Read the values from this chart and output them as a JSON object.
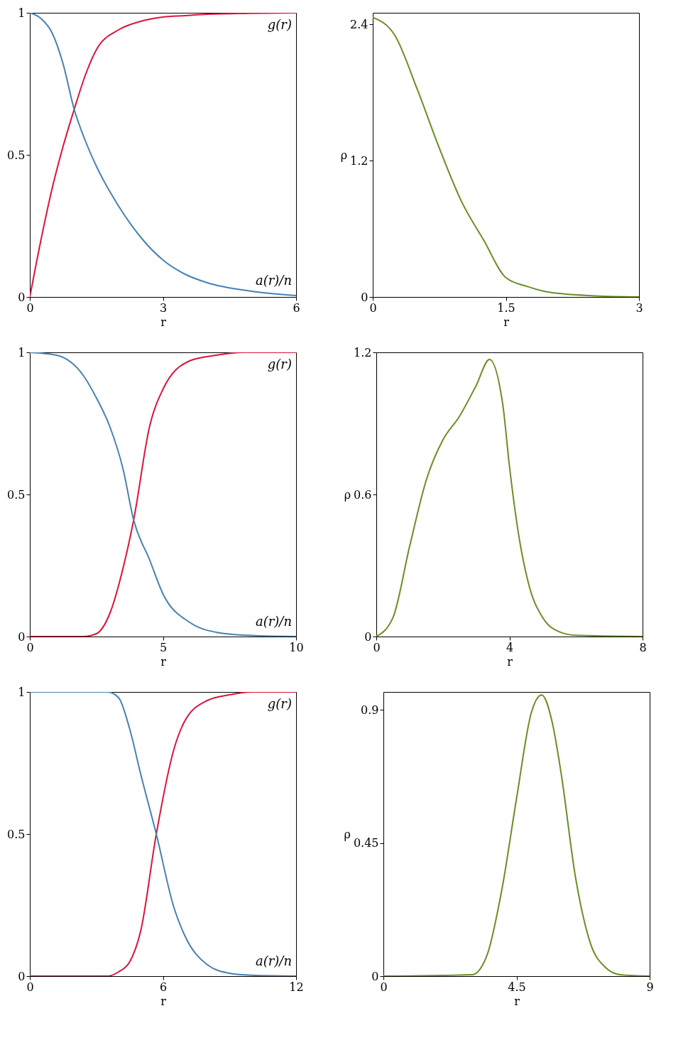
{
  "chart_data": [
    {
      "type": "line",
      "xlabel": "r",
      "x": [
        0,
        0.25,
        0.5,
        0.75,
        1,
        1.25,
        1.5,
        2,
        2.5,
        3,
        3.5,
        4,
        5,
        6
      ],
      "xlim": [
        0,
        6
      ],
      "ylim": [
        0,
        1
      ],
      "xticks": [
        0,
        3,
        6
      ],
      "yticks": [
        0,
        0.5,
        1
      ],
      "grid": false,
      "series": [
        {
          "name": "g(r)",
          "color": "#dc143c",
          "values": [
            0,
            0.2,
            0.38,
            0.53,
            0.66,
            0.78,
            0.87,
            0.94,
            0.97,
            0.985,
            0.99,
            0.995,
            0.998,
            1
          ]
        },
        {
          "name": "a(r)/n",
          "color": "#4682b4",
          "values": [
            1,
            0.98,
            0.93,
            0.82,
            0.66,
            0.55,
            0.46,
            0.32,
            0.21,
            0.13,
            0.08,
            0.05,
            0.02,
            0.005
          ]
        }
      ]
    },
    {
      "type": "line",
      "xlabel": "r",
      "ylabel": "ρ",
      "x": [
        0,
        0.25,
        0.5,
        0.75,
        1,
        1.25,
        1.5,
        1.75,
        2,
        2.5,
        3
      ],
      "xlim": [
        0,
        3
      ],
      "ylim": [
        0,
        2.5
      ],
      "xticks": [
        0,
        1.5,
        3
      ],
      "yticks": [
        0,
        1.2,
        2.4
      ],
      "grid": false,
      "series": [
        {
          "color": "#6b8e23",
          "values": [
            2.46,
            2.3,
            1.83,
            1.31,
            0.84,
            0.5,
            0.17,
            0.09,
            0.04,
            0.01,
            0
          ]
        }
      ]
    },
    {
      "type": "line",
      "xlabel": "r",
      "x": [
        0,
        1,
        2,
        2.5,
        3,
        3.5,
        3.9,
        4.5,
        5,
        6,
        7,
        8,
        10
      ],
      "xlim": [
        0,
        10
      ],
      "ylim": [
        0,
        1
      ],
      "xticks": [
        0,
        5,
        10
      ],
      "yticks": [
        0,
        0.5,
        1
      ],
      "grid": false,
      "series": [
        {
          "name": "g(r)",
          "color": "#dc143c",
          "values": [
            0,
            0,
            0,
            0.01,
            0.08,
            0.24,
            0.41,
            0.74,
            0.87,
            0.97,
            0.99,
            1,
            1
          ]
        },
        {
          "name": "a(r)/n",
          "color": "#4682b4",
          "values": [
            1,
            0.99,
            0.92,
            0.84,
            0.74,
            0.59,
            0.41,
            0.27,
            0.15,
            0.05,
            0.015,
            0.005,
            0
          ]
        }
      ]
    },
    {
      "type": "line",
      "xlabel": "r",
      "ylabel": "ρ",
      "x": [
        0,
        0.5,
        1,
        1.5,
        2,
        2.5,
        3,
        3.4,
        3.8,
        4,
        4.3,
        4.6,
        5,
        5.5,
        6,
        8
      ],
      "xlim": [
        0,
        8
      ],
      "ylim": [
        0,
        1.2
      ],
      "xticks": [
        0,
        4,
        8
      ],
      "yticks": [
        0,
        0.6,
        1.2
      ],
      "grid": false,
      "series": [
        {
          "color": "#6b8e23",
          "values": [
            0,
            0.08,
            0.38,
            0.66,
            0.83,
            0.93,
            1.06,
            1.17,
            0.98,
            0.72,
            0.41,
            0.21,
            0.08,
            0.02,
            0.005,
            0
          ]
        }
      ]
    },
    {
      "type": "line",
      "xlabel": "r",
      "x": [
        0,
        3.5,
        4,
        4.5,
        5,
        5.7,
        6.5,
        7,
        8,
        9,
        10,
        12
      ],
      "xlim": [
        0,
        12
      ],
      "ylim": [
        0,
        1
      ],
      "xticks": [
        0,
        6,
        12
      ],
      "yticks": [
        0,
        0.5,
        1
      ],
      "grid": false,
      "series": [
        {
          "name": "g(r)",
          "color": "#dc143c",
          "values": [
            0,
            0,
            0.015,
            0.05,
            0.16,
            0.5,
            0.8,
            0.9,
            0.97,
            0.99,
            1,
            1
          ]
        },
        {
          "name": "a(r)/n",
          "color": "#4682b4",
          "values": [
            1,
            1,
            0.98,
            0.87,
            0.71,
            0.5,
            0.24,
            0.14,
            0.04,
            0.01,
            0.003,
            0
          ]
        }
      ]
    },
    {
      "type": "line",
      "xlabel": "r",
      "ylabel": "ρ",
      "x": [
        0,
        3,
        3.5,
        4,
        4.5,
        5,
        5.35,
        5.7,
        6,
        6.5,
        7,
        7.5,
        8,
        9
      ],
      "xlim": [
        0,
        9
      ],
      "ylim": [
        0,
        0.96
      ],
      "xticks": [
        0,
        4.5,
        9
      ],
      "yticks": [
        0,
        0.45,
        0.9
      ],
      "grid": false,
      "series": [
        {
          "color": "#6b8e23",
          "values": [
            0,
            0.005,
            0.07,
            0.29,
            0.6,
            0.89,
            0.95,
            0.86,
            0.69,
            0.33,
            0.11,
            0.03,
            0.005,
            0
          ]
        }
      ]
    }
  ]
}
